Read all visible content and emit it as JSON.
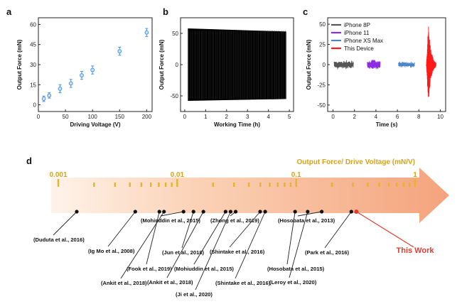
{
  "panels": {
    "a": "a",
    "b": "b",
    "c": "c",
    "d": "d"
  },
  "chart_data": [
    {
      "id": "a",
      "type": "scatter",
      "xlabel": "Driving Voltage (V)",
      "ylabel": "Output Force (mN)",
      "xlim": [
        0,
        210
      ],
      "ylim": [
        -5,
        65
      ],
      "xticks": [
        0,
        50,
        100,
        150,
        200
      ],
      "yticks": [
        0,
        15,
        30,
        45,
        60
      ],
      "x": [
        10,
        20,
        40,
        60,
        80,
        100,
        150,
        200
      ],
      "y": [
        4.5,
        7,
        12,
        16,
        22,
        26,
        40,
        54
      ],
      "err": [
        2,
        2,
        3,
        3,
        3,
        3,
        3,
        3
      ],
      "color": "#4a90e2"
    },
    {
      "id": "b",
      "type": "area",
      "xlabel": "Working Time (h)",
      "ylabel": "Output Force (mN)",
      "xlim": [
        -0.2,
        5.2
      ],
      "ylim": [
        -75,
        75
      ],
      "xticks": [
        0,
        1,
        2,
        3,
        4,
        5
      ],
      "yticks": [
        -50,
        0,
        50
      ],
      "x": [
        0.15,
        4.85
      ],
      "upper": [
        58,
        53
      ],
      "lower": [
        -58,
        -55
      ],
      "color": "#000000"
    },
    {
      "id": "c",
      "type": "line",
      "xlabel": "Time (s)",
      "ylabel": "Output Force (mN)",
      "xlim": [
        -0.5,
        10.5
      ],
      "ylim": [
        -58,
        58
      ],
      "xticks": [
        0,
        2,
        4,
        6,
        8,
        10
      ],
      "yticks": [
        -50,
        -25,
        0,
        25,
        50
      ],
      "legend_position": "top-left",
      "series": [
        {
          "name": "iPhone 8P",
          "color": "#555555",
          "t_range": [
            0.1,
            1.9
          ],
          "amplitude": 6
        },
        {
          "name": "iPhone 11",
          "color": "#8b2be2",
          "t_range": [
            3.2,
            4.4
          ],
          "amplitude": 7
        },
        {
          "name": "iPhone XS Max",
          "color": "#4a86c8",
          "t_range": [
            6.1,
            7.6
          ],
          "amplitude": 4
        },
        {
          "name": "This Device",
          "color": "#ff1a1a",
          "t_range": [
            8.7,
            9.6
          ],
          "amplitude": 52
        }
      ]
    },
    {
      "id": "d",
      "type": "scatter",
      "title": "Output Force/ Drive Voltage (mN/V)",
      "scale": "log",
      "xlim": [
        0.001,
        1
      ],
      "ticks": [
        "0.001",
        "0.01",
        "0.1",
        "1"
      ],
      "points": [
        {
          "name": "(Duduta et al., 2016)",
          "value": 0.00143
        },
        {
          "name": "(Ig Mo et al., 2008)",
          "value": 0.00444
        },
        {
          "name": "(Fook et al., 2019)",
          "value": 0.00708
        },
        {
          "name": "(Ankit et al., 2018)",
          "value": 0.00774
        },
        {
          "name": "(Mohinddin et al., 2015)",
          "value": 0.0113
        },
        {
          "name": "(Jun et al., 2018)",
          "value": 0.0137
        },
        {
          "name": "(Ankit et al., 2018)",
          "value": 0.0166
        },
        {
          "name": "(Mohiuddin et al., 2015)",
          "value": 0.0255
        },
        {
          "name": "(Ji et al., 2020)",
          "value": 0.0281
        },
        {
          "name": "(Zhong et al., 2019)",
          "value": 0.031
        },
        {
          "name": "(Shintake et al., 2016)",
          "value": 0.0498
        },
        {
          "name": "(Shintake et al., 2016)",
          "value": 0.0549
        },
        {
          "name": "(Hosobata et al., 2015)",
          "value": 0.098
        },
        {
          "name": "(Leroy et al., 2020)",
          "value": 0.125
        },
        {
          "name": "(Hosobata et al., 2013)",
          "value": 0.164
        },
        {
          "name": "(Park et al., 2016)",
          "value": 0.291
        },
        {
          "name": "This Work",
          "value": 0.321,
          "highlight": true
        }
      ]
    }
  ]
}
